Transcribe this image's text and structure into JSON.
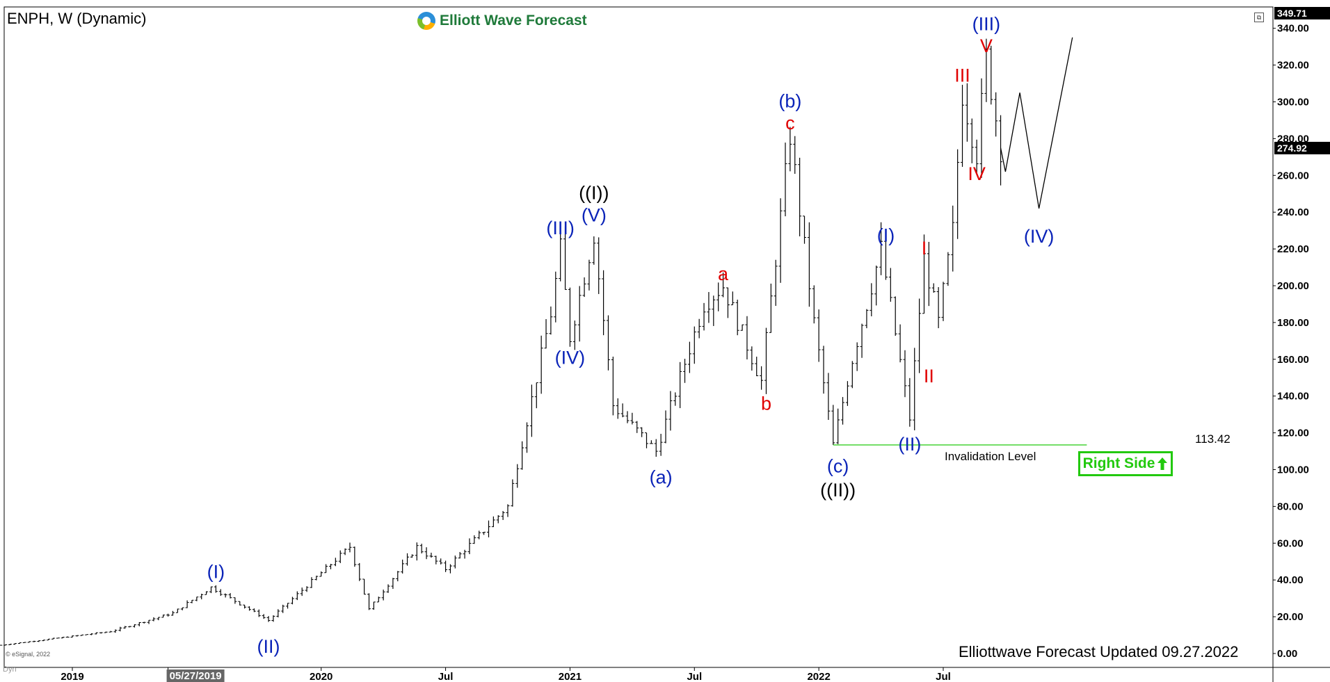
{
  "header": {
    "symbol_title": "ENPH, W (Dynamic)",
    "brand": "Elliott Wave Forecast"
  },
  "footer": {
    "updated": "Elliottwave Forecast Updated 09.27.2022",
    "copyright": "© eSignal, 2022",
    "mode": "Dyn"
  },
  "price_scale": {
    "top_price": "349.71",
    "last_price": "274.92"
  },
  "invalidation": {
    "label": "Invalidation Level",
    "value": "113.42"
  },
  "badge": {
    "label": "Right Side",
    "icon": "arrow-up-icon"
  },
  "colors": {
    "blue_label": "#0a23b8",
    "red_label": "#e00000",
    "black_label": "#000000",
    "invalidation_line": "#22c90e",
    "badge": "#22c90e"
  },
  "chart_data": {
    "type": "bar",
    "style": "OHLC weekly price bars",
    "ylim": [
      0,
      349.71
    ],
    "y_ticks": [
      "0.00",
      "20.00",
      "40.00",
      "60.00",
      "80.00",
      "100.00",
      "120.00",
      "140.00",
      "160.00",
      "180.00",
      "200.00",
      "220.00",
      "240.00",
      "260.00",
      "280.00",
      "300.00",
      "320.00",
      "340.00"
    ],
    "x_ticks": [
      {
        "label": "2019",
        "date": "2019-01-07"
      },
      {
        "label": "05/27/2019",
        "date": "2019-05-27",
        "highlight": true
      },
      {
        "label": "2020",
        "date": "2020-01-06"
      },
      {
        "label": "Jul",
        "date": "2020-07-06"
      },
      {
        "label": "2021",
        "date": "2021-01-04"
      },
      {
        "label": "Jul",
        "date": "2021-07-05"
      },
      {
        "label": "2022",
        "date": "2022-01-03"
      },
      {
        "label": "Jul",
        "date": "2022-07-04"
      }
    ],
    "key_points": [
      {
        "date": "2018-09-24",
        "price": 4.5
      },
      {
        "date": "2019-03-04",
        "price": 12
      },
      {
        "date": "2019-06-03",
        "price": 22
      },
      {
        "date": "2019-07-29",
        "price": 36
      },
      {
        "date": "2019-10-21",
        "price": 18
      },
      {
        "date": "2020-02-17",
        "price": 58
      },
      {
        "date": "2020-03-16",
        "price": 24
      },
      {
        "date": "2020-05-25",
        "price": 58
      },
      {
        "date": "2020-07-06",
        "price": 46
      },
      {
        "date": "2020-10-05",
        "price": 80
      },
      {
        "date": "2020-12-07",
        "price": 185
      },
      {
        "date": "2020-12-21",
        "price": 220
      },
      {
        "date": "2021-01-04",
        "price": 172
      },
      {
        "date": "2021-02-08",
        "price": 228
      },
      {
        "date": "2021-03-08",
        "price": 135
      },
      {
        "date": "2021-05-10",
        "price": 110
      },
      {
        "date": "2021-06-14",
        "price": 150
      },
      {
        "date": "2021-07-19",
        "price": 190
      },
      {
        "date": "2021-08-16",
        "price": 200
      },
      {
        "date": "2021-10-11",
        "price": 148
      },
      {
        "date": "2021-11-22",
        "price": 282
      },
      {
        "date": "2021-12-27",
        "price": 180
      },
      {
        "date": "2022-01-24",
        "price": 113.42
      },
      {
        "date": "2022-02-21",
        "price": 160
      },
      {
        "date": "2022-04-04",
        "price": 220
      },
      {
        "date": "2022-05-16",
        "price": 128
      },
      {
        "date": "2022-06-06",
        "price": 215
      },
      {
        "date": "2022-06-27",
        "price": 180
      },
      {
        "date": "2022-07-18",
        "price": 230
      },
      {
        "date": "2022-08-01",
        "price": 305
      },
      {
        "date": "2022-08-22",
        "price": 272
      },
      {
        "date": "2022-09-05",
        "price": 324
      },
      {
        "date": "2022-09-26",
        "price": 274.92
      }
    ],
    "projection": [
      {
        "date": "2022-09-26",
        "price": 274.92
      },
      {
        "date": "2022-10-03",
        "price": 262
      },
      {
        "date": "2022-10-24",
        "price": 305
      },
      {
        "date": "2022-11-21",
        "price": 242
      },
      {
        "date": "2023-01-09",
        "price": 335
      }
    ],
    "invalidation_level": 113.42,
    "invalidation_start": "2022-01-24",
    "invalidation_end": "2023-01-30",
    "wave_labels": [
      {
        "text": "(I)",
        "date": "2019-08-05",
        "price": 41,
        "color": "blue",
        "pos": "above"
      },
      {
        "text": "(II)",
        "date": "2019-10-21",
        "price": 8,
        "color": "blue",
        "pos": "below"
      },
      {
        "text": "(III)",
        "date": "2020-12-21",
        "price": 228,
        "color": "blue",
        "pos": "above"
      },
      {
        "text": "(IV)",
        "date": "2021-01-04",
        "price": 165,
        "color": "blue",
        "pos": "below"
      },
      {
        "text": "(V)",
        "date": "2021-02-08",
        "price": 235,
        "color": "blue",
        "pos": "above"
      },
      {
        "text": "((I))",
        "date": "2021-02-08",
        "price": 247,
        "color": "black",
        "pos": "above"
      },
      {
        "text": "(a)",
        "date": "2021-05-17",
        "price": 100,
        "color": "blue",
        "pos": "below"
      },
      {
        "text": "a",
        "date": "2021-08-16",
        "price": 203,
        "color": "red",
        "pos": "above"
      },
      {
        "text": "b",
        "date": "2021-10-18",
        "price": 140,
        "color": "red",
        "pos": "below"
      },
      {
        "text": "c",
        "date": "2021-11-22",
        "price": 285,
        "color": "red",
        "pos": "above"
      },
      {
        "text": "(b)",
        "date": "2021-11-22",
        "price": 297,
        "color": "blue",
        "pos": "above"
      },
      {
        "text": "(c)",
        "date": "2022-01-31",
        "price": 106,
        "color": "blue",
        "pos": "below"
      },
      {
        "text": "((II))",
        "date": "2022-01-31",
        "price": 93,
        "color": "black",
        "pos": "below"
      },
      {
        "text": "(I)",
        "date": "2022-04-11",
        "price": 224,
        "color": "blue",
        "pos": "above"
      },
      {
        "text": "(II)",
        "date": "2022-05-16",
        "price": 118,
        "color": "blue",
        "pos": "below"
      },
      {
        "text": "I",
        "date": "2022-06-06",
        "price": 217,
        "color": "red",
        "pos": "above"
      },
      {
        "text": "II",
        "date": "2022-06-13",
        "price": 155,
        "color": "red",
        "pos": "below"
      },
      {
        "text": "III",
        "date": "2022-08-01",
        "price": 311,
        "color": "red",
        "pos": "above"
      },
      {
        "text": "IV",
        "date": "2022-08-22",
        "price": 265,
        "color": "red",
        "pos": "below"
      },
      {
        "text": "V",
        "date": "2022-09-05",
        "price": 327,
        "color": "red",
        "pos": "above"
      },
      {
        "text": "(III)",
        "date": "2022-09-05",
        "price": 339,
        "color": "blue",
        "pos": "above"
      },
      {
        "text": "(IV)",
        "date": "2022-11-21",
        "price": 231,
        "color": "blue",
        "pos": "below"
      }
    ]
  }
}
